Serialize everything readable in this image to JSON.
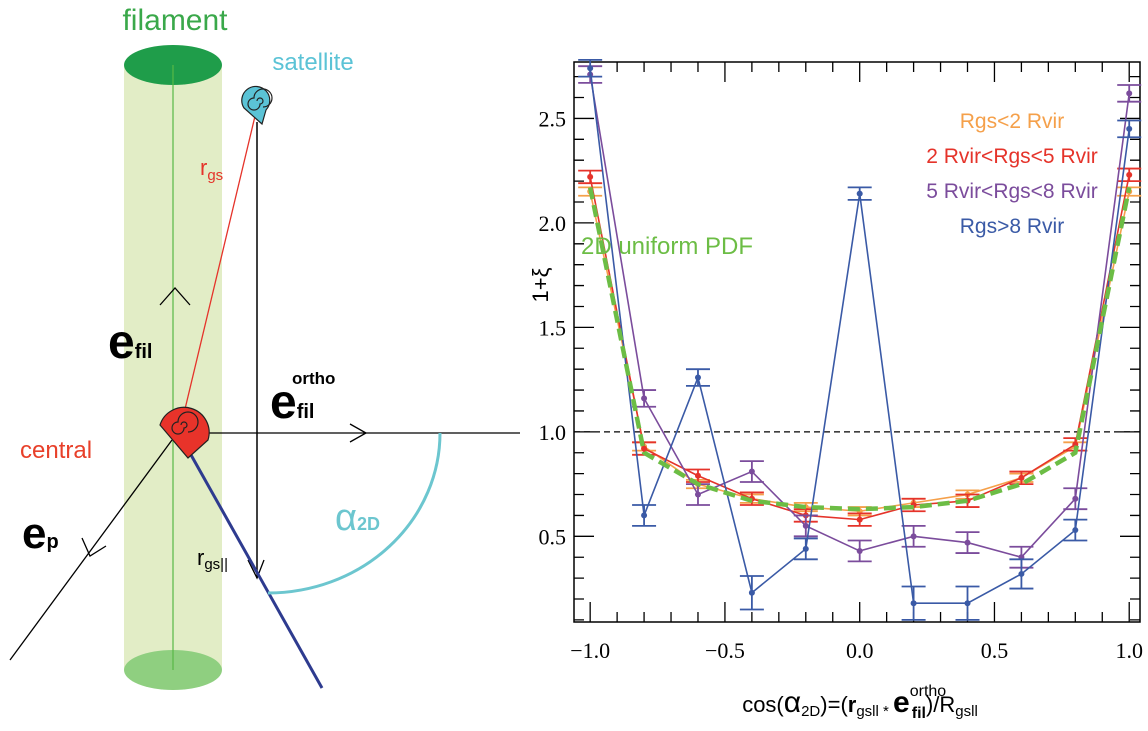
{
  "diagram": {
    "filament": "filament",
    "satellite": "satellite",
    "central": "central",
    "r_gs": {
      "base": "r",
      "sub": "gs"
    },
    "e_fil": {
      "base": "e",
      "sub": "fil"
    },
    "e_fil_ortho": {
      "base": "e",
      "sub": "fil",
      "sup": "ortho"
    },
    "alpha_2d": {
      "base": "α",
      "sub": "2D"
    },
    "r_gs_par": {
      "base": "r",
      "sub": "gs||"
    },
    "e_p": {
      "base": "e",
      "sub": "p"
    }
  },
  "chart_data": {
    "type": "line",
    "xlabel": [
      "cos(",
      "α",
      "2D",
      ")=(",
      "r",
      "gsll",
      " * ",
      "e",
      "ortho",
      "fil",
      ")/R",
      "gsll"
    ],
    "ylabel": "1+ξ",
    "x": [
      -1.0,
      -0.8,
      -0.6,
      -0.4,
      -0.2,
      0.0,
      0.2,
      0.4,
      0.6,
      0.8,
      1.0
    ],
    "series": [
      {
        "name": "Rgs<2 Rvir",
        "color": "#f5a04a",
        "values": [
          2.15,
          0.93,
          0.75,
          0.68,
          0.64,
          0.62,
          0.66,
          0.7,
          0.78,
          0.93,
          2.15
        ],
        "errors": [
          0.02,
          0.02,
          0.02,
          0.02,
          0.02,
          0.02,
          0.02,
          0.02,
          0.02,
          0.02,
          0.02
        ]
      },
      {
        "name": "2 Rvir<Rgs<5 Rvir",
        "color": "#e5332a",
        "values": [
          2.22,
          0.92,
          0.79,
          0.68,
          0.6,
          0.58,
          0.65,
          0.67,
          0.78,
          0.94,
          2.23
        ],
        "errors": [
          0.03,
          0.03,
          0.03,
          0.03,
          0.03,
          0.03,
          0.03,
          0.03,
          0.03,
          0.03,
          0.03
        ]
      },
      {
        "name": "5 Rvir<Rgs<8 Rvir",
        "color": "#7b4c9c",
        "values": [
          2.71,
          1.16,
          0.7,
          0.81,
          0.55,
          0.43,
          0.5,
          0.47,
          0.4,
          0.68,
          2.62
        ],
        "errors": [
          0.04,
          0.04,
          0.05,
          0.05,
          0.05,
          0.05,
          0.05,
          0.05,
          0.05,
          0.05,
          0.04
        ]
      },
      {
        "name": "Rgs>8 Rvir",
        "color": "#3a5aa6",
        "values": [
          2.74,
          0.6,
          1.26,
          0.23,
          0.44,
          2.14,
          0.18,
          0.18,
          0.32,
          0.53,
          2.45
        ],
        "errors": [
          0.04,
          0.05,
          0.04,
          0.08,
          0.05,
          0.03,
          0.08,
          0.08,
          0.07,
          0.05,
          0.04
        ]
      },
      {
        "name": "2D uniform PDF",
        "color": "#6cbd45",
        "dashed": true,
        "values": [
          2.17,
          0.9,
          0.75,
          0.67,
          0.64,
          0.63,
          0.64,
          0.67,
          0.75,
          0.9,
          2.17
        ]
      }
    ],
    "xlim": [
      -1.06,
      1.04
    ],
    "ylim": [
      0.09,
      2.77
    ],
    "xticks": [
      {
        "value": -1.0,
        "label": "−1.0"
      },
      {
        "value": -0.5,
        "label": "−0.5"
      },
      {
        "value": 0.0,
        "label": "0.0"
      },
      0.5,
      {
        "value": 1.0,
        "label": "1.0"
      }
    ],
    "yticks": [
      0.5,
      {
        "value": 1.0,
        "label": "1.0"
      },
      1.5,
      {
        "value": 2.0,
        "label": "2.0"
      },
      2.5
    ],
    "xminorticks": [
      -0.9,
      -0.8,
      -0.7,
      -0.6,
      -0.4,
      -0.3,
      -0.2,
      -0.1,
      0.1,
      0.2,
      0.3,
      0.4,
      0.6,
      0.7,
      0.8,
      0.9
    ],
    "yminorticks": [
      0.1,
      0.2,
      0.3,
      0.4,
      0.6,
      0.7,
      0.8,
      0.9,
      1.1,
      1.2,
      1.3,
      1.4,
      1.6,
      1.7,
      1.8,
      1.9,
      2.1,
      2.2,
      2.3,
      2.4,
      2.6,
      2.7
    ],
    "hline": 1.0
  }
}
